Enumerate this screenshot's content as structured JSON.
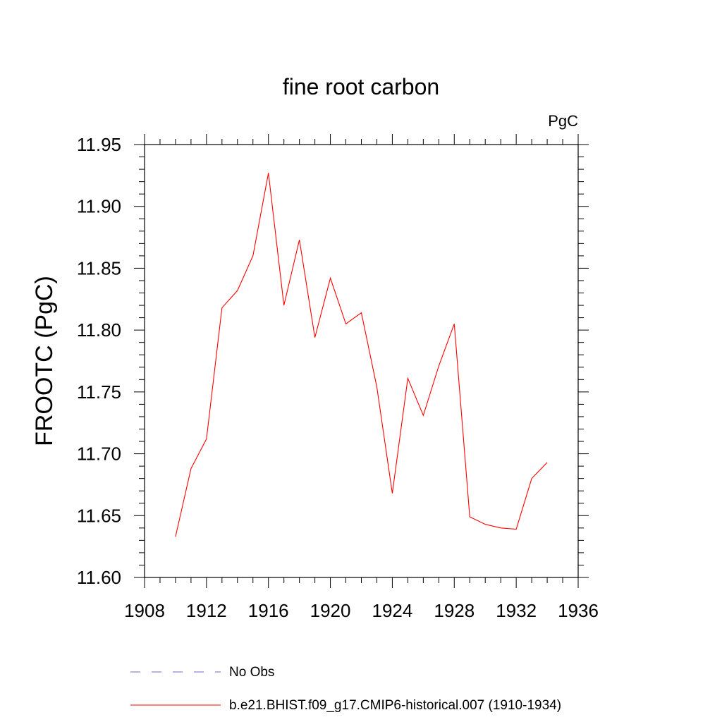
{
  "chart_data": {
    "type": "line",
    "title": "fine root carbon",
    "units": "PgC",
    "ylabel": "FROOTC  (PgC)",
    "xlabel": "",
    "xlim": [
      1908,
      1936
    ],
    "ylim": [
      11.6,
      11.95
    ],
    "x_ticks": [
      1908,
      1912,
      1916,
      1920,
      1924,
      1928,
      1932,
      1936
    ],
    "x_tick_labels": [
      "1908",
      "1912",
      "1916",
      "1920",
      "1924",
      "1928",
      "1932",
      "1936"
    ],
    "y_ticks": [
      11.6,
      11.65,
      11.7,
      11.75,
      11.8,
      11.85,
      11.9,
      11.95
    ],
    "y_tick_labels": [
      "11.60",
      "11.65",
      "11.70",
      "11.75",
      "11.80",
      "11.85",
      "11.90",
      "11.95"
    ],
    "grid": false,
    "legend_position": "bottom",
    "series": [
      {
        "name": "No Obs",
        "color": "#6a6ad0",
        "dash": "dashed",
        "x": [],
        "values": []
      },
      {
        "name": "b.e21.BHIST.f09_g17.CMIP6-historical.007 (1910-1934)",
        "color": "#ff0000",
        "dash": "solid",
        "x": [
          1910,
          1911,
          1912,
          1913,
          1914,
          1915,
          1916,
          1917,
          1918,
          1919,
          1920,
          1921,
          1922,
          1923,
          1924,
          1925,
          1926,
          1927,
          1928,
          1929,
          1930,
          1931,
          1932,
          1933,
          1934
        ],
        "values": [
          11.633,
          11.688,
          11.712,
          11.818,
          11.832,
          11.86,
          11.927,
          11.82,
          11.873,
          11.794,
          11.842,
          11.805,
          11.814,
          11.754,
          11.668,
          11.761,
          11.731,
          11.771,
          11.805,
          11.649,
          11.643,
          11.64,
          11.639,
          11.68,
          11.693
        ]
      }
    ]
  }
}
